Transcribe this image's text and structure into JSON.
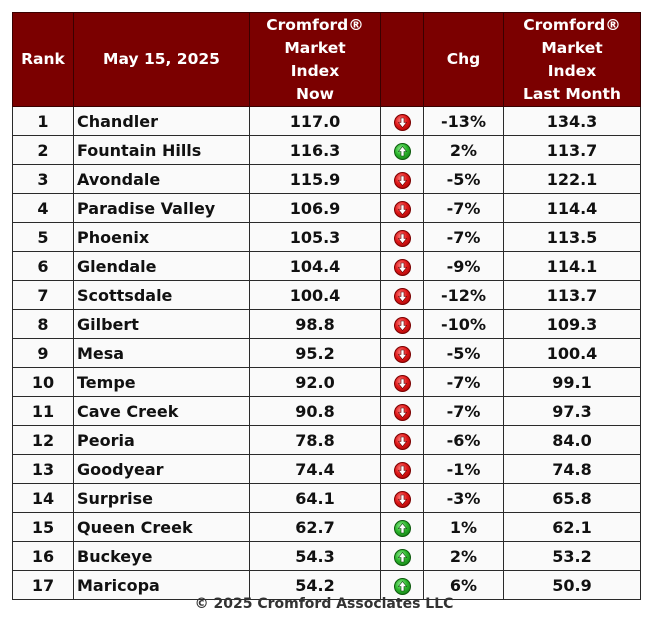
{
  "table": {
    "headers": {
      "rank": "Rank",
      "date": "May 15, 2025",
      "now": [
        "Cromford®",
        "Market",
        "Index",
        "Now"
      ],
      "arrow": "",
      "chg": "Chg",
      "last": [
        "Cromford®",
        "Market",
        "Index",
        "Last Month"
      ]
    },
    "rows": [
      {
        "rank": "1",
        "city": "Chandler",
        "now": "117.0",
        "dir": "down",
        "icon": "down-arrow-icon",
        "chg": "-13%",
        "last": "134.3"
      },
      {
        "rank": "2",
        "city": "Fountain Hills",
        "now": "116.3",
        "dir": "up",
        "icon": "up-arrow-icon",
        "chg": "2%",
        "last": "113.7"
      },
      {
        "rank": "3",
        "city": "Avondale",
        "now": "115.9",
        "dir": "down",
        "icon": "down-arrow-icon",
        "chg": "-5%",
        "last": "122.1"
      },
      {
        "rank": "4",
        "city": "Paradise Valley",
        "now": "106.9",
        "dir": "down",
        "icon": "down-arrow-icon",
        "chg": "-7%",
        "last": "114.4"
      },
      {
        "rank": "5",
        "city": "Phoenix",
        "now": "105.3",
        "dir": "down",
        "icon": "down-arrow-icon",
        "chg": "-7%",
        "last": "113.5"
      },
      {
        "rank": "6",
        "city": "Glendale",
        "now": "104.4",
        "dir": "down",
        "icon": "down-arrow-icon",
        "chg": "-9%",
        "last": "114.1"
      },
      {
        "rank": "7",
        "city": "Scottsdale",
        "now": "100.4",
        "dir": "down",
        "icon": "down-arrow-icon",
        "chg": "-12%",
        "last": "113.7"
      },
      {
        "rank": "8",
        "city": "Gilbert",
        "now": "98.8",
        "dir": "down",
        "icon": "down-arrow-icon",
        "chg": "-10%",
        "last": "109.3"
      },
      {
        "rank": "9",
        "city": "Mesa",
        "now": "95.2",
        "dir": "down",
        "icon": "down-arrow-icon",
        "chg": "-5%",
        "last": "100.4"
      },
      {
        "rank": "10",
        "city": "Tempe",
        "now": "92.0",
        "dir": "down",
        "icon": "down-arrow-icon",
        "chg": "-7%",
        "last": "99.1"
      },
      {
        "rank": "11",
        "city": "Cave Creek",
        "now": "90.8",
        "dir": "down",
        "icon": "down-arrow-icon",
        "chg": "-7%",
        "last": "97.3"
      },
      {
        "rank": "12",
        "city": "Peoria",
        "now": "78.8",
        "dir": "down",
        "icon": "down-arrow-icon",
        "chg": "-6%",
        "last": "84.0"
      },
      {
        "rank": "13",
        "city": "Goodyear",
        "now": "74.4",
        "dir": "down",
        "icon": "down-arrow-icon",
        "chg": "-1%",
        "last": "74.8"
      },
      {
        "rank": "14",
        "city": "Surprise",
        "now": "64.1",
        "dir": "down",
        "icon": "down-arrow-icon",
        "chg": "-3%",
        "last": "65.8"
      },
      {
        "rank": "15",
        "city": "Queen Creek",
        "now": "62.7",
        "dir": "up",
        "icon": "up-arrow-icon",
        "chg": "1%",
        "last": "62.1"
      },
      {
        "rank": "16",
        "city": "Buckeye",
        "now": "54.3",
        "dir": "up",
        "icon": "up-arrow-icon",
        "chg": "2%",
        "last": "53.2"
      },
      {
        "rank": "17",
        "city": "Maricopa",
        "now": "54.2",
        "dir": "up",
        "icon": "up-arrow-icon",
        "chg": "6%",
        "last": "50.9"
      }
    ]
  },
  "footer": "© 2025 Cromford Associates LLC",
  "colors": {
    "header_bg": "#7b0000",
    "header_text": "#ffffff",
    "arrow_down": "#e01818",
    "arrow_up": "#2bb52b"
  }
}
